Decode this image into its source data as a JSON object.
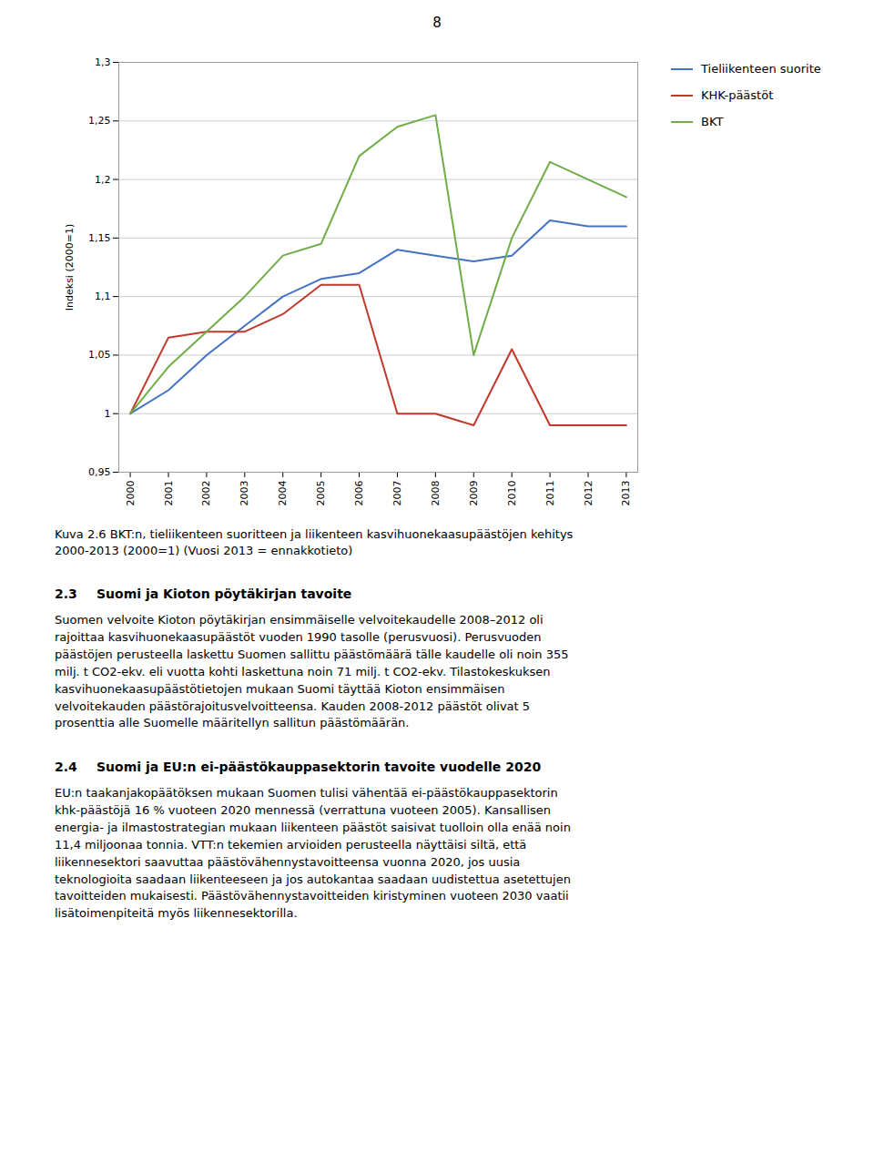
{
  "chart_data": {
    "type": "line",
    "title": "8",
    "x": [
      2000,
      2001,
      2002,
      2003,
      2004,
      2005,
      2006,
      2007,
      2008,
      2009,
      2010,
      2011,
      2012,
      2013
    ],
    "series": [
      {
        "name": "Tieliikenteen suorite",
        "color": "#4472C4",
        "values": [
          1.0,
          1.02,
          1.05,
          1.075,
          1.1,
          1.115,
          1.12,
          1.14,
          1.135,
          1.13,
          1.135,
          1.165,
          1.16,
          1.16
        ]
      },
      {
        "name": "KHK-päästöt",
        "color": "#C0392B",
        "values": [
          1.0,
          1.065,
          1.07,
          1.07,
          1.085,
          1.11,
          1.11,
          1.0,
          1.0,
          0.99,
          1.055,
          0.99,
          0.99,
          0.99
        ]
      },
      {
        "name": "BKT",
        "color": "#70AD47",
        "values": [
          1.0,
          1.04,
          1.07,
          1.1,
          1.135,
          1.145,
          1.22,
          1.245,
          1.255,
          1.05,
          1.15,
          1.215,
          1.2,
          1.185
        ]
      }
    ],
    "xlim": [
      1999.7,
      2013.3
    ],
    "xticks": [
      2000,
      2001,
      2002,
      2003,
      2004,
      2005,
      2006,
      2007,
      2008,
      2009,
      2010,
      2011,
      2012,
      2013
    ],
    "ylim": [
      0.95,
      1.3
    ],
    "yticks": [
      {
        "value": 0.95,
        "label": "0,95"
      },
      1,
      {
        "value": 1.05,
        "label": "1,05"
      },
      {
        "value": 1.1,
        "label": "1,1"
      },
      {
        "value": 1.15,
        "label": "1,15"
      },
      {
        "value": 1.2,
        "label": "1,2"
      },
      {
        "value": 1.25,
        "label": "1,25"
      },
      {
        "value": 1.3,
        "label": "1,3"
      }
    ],
    "ylabel": "Indeksi (2000=1)",
    "grid": true,
    "legend": "right",
    "annotations": [
      "Kuva 2.6 BKT:n, tieliikenteen suoritteen ja liikenteen kasvihuonekaasupäästöjen kehitys\n2000-2013 (2000=1) (Vuosi 2013 = ennakkotieto)",
      "2.3",
      "Suomi ja Kioton pöytäkirjan tavoite",
      "Suomen velvoite Kioton pöytäkirjan ensimmäiselle velvoitekaudelle 2008–2012 oli\nrajoittaa kasvihuonekaasupäästöt vuoden 1990 tasolle (perusvuosi). Perusvuoden\npäästöjen perusteella laskettu Suomen sallittu päästömäärä tälle kaudelle oli noin 355\nmilj. t CO2-ekv. eli vuotta kohti laskettuna noin 71 milj. t CO2-ekv. Tilastokeskuksen\nkasvihuonekaasupäästötietojen mukaan Suomi täyttää Kioton ensimmäisen\nvelvoitekauden päästörajoitusvelvoitteensa. Kauden 2008-2012 päästöt olivat 5\nprosenttia alle Suomelle määritellyn sallitun päästömäärän.",
      "2.4",
      "Suomi ja EU:n ei-päästökauppasektorin tavoite vuodelle 2020",
      "EU:n taakanjakopäätöksen mukaan Suomen tulisi vähentää ei-päästökauppasektorin\nkhk-päästöjä 16 % vuoteen 2020 mennessä (verrattuna vuoteen 2005). Kansallisen\nenergia- ja ilmastostrategian mukaan liikenteen päästöt saisivat tuolloin olla enää noin\n11,4 miljoonaa tonnia. VTT:n tekemien arvioiden perusteella näyttäisi siltä, että\nliikennesektori saavuttaa päästövähennystavoitteensa vuonna 2020, jos uusia\nteknologioita saadaan liikenteeseen ja jos autokantaa saadaan uudistettua asetettujen\ntavoitteiden mukaisesti. Päästövähennystavoitteiden kiristyminen vuoteen 2030 vaatii\nlisätoimenpiteitä myös liikennesektorilla."
    ]
  }
}
